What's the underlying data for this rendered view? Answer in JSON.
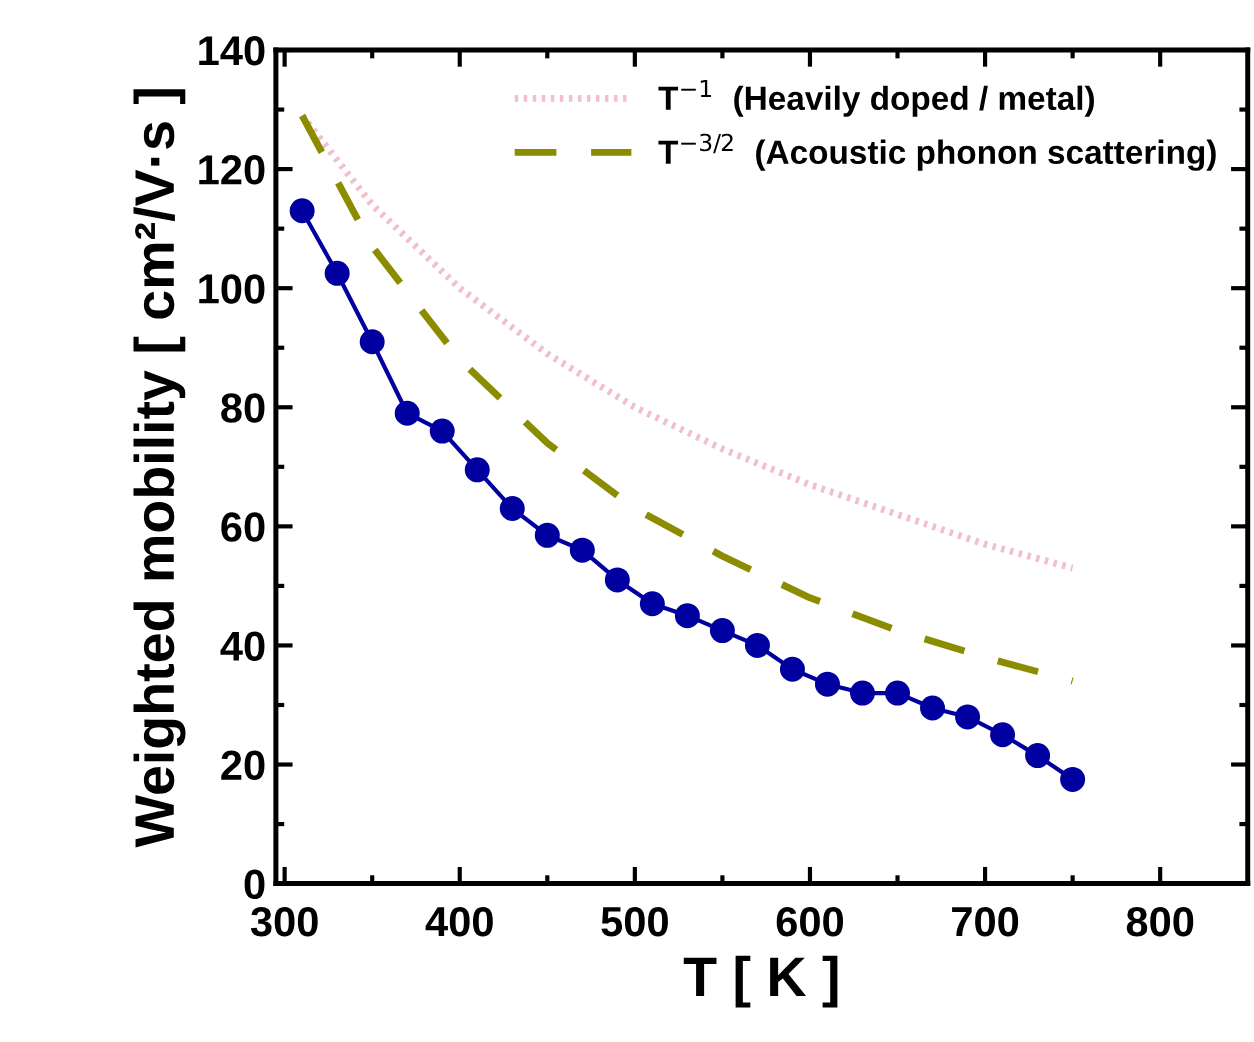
{
  "chart_data": {
    "type": "line",
    "xlabel": "T [ K ]",
    "ylabel": "Weighted mobility [ cm²/V·s ]",
    "xlim": [
      295,
      850
    ],
    "xticks": [
      300,
      400,
      500,
      600,
      700,
      800
    ],
    "ylim": [
      0,
      140
    ],
    "yticks": [
      0,
      20,
      40,
      60,
      80,
      100,
      120,
      140
    ],
    "grid": false,
    "legend": "top right",
    "series": [
      {
        "name": "T$^{−1}$  (Heavily doped / metal)",
        "color": "#f0c0cc",
        "line_style": "dotted",
        "marker": "none",
        "x": [
          310,
          350,
          400,
          450,
          500,
          550,
          600,
          650,
          700,
          750
        ],
        "values": [
          129,
          114,
          100,
          89,
          80,
          73,
          67,
          62,
          57,
          53
        ]
      },
      {
        "name": "T$^{−3/2}$  (Acoustic phonon scattering)",
        "color": "#8c8c00",
        "line_style": "dashed",
        "marker": "none",
        "x": [
          310,
          350,
          400,
          450,
          500,
          550,
          600,
          650,
          700,
          750
        ],
        "values": [
          129,
          107,
          88,
          74,
          63,
          55,
          48,
          42.5,
          38,
          34
        ]
      },
      {
        "color": "#0000a0",
        "line_style": "solid",
        "marker": "circle",
        "x": [
          310,
          330,
          350,
          370,
          390,
          410,
          430,
          450,
          470,
          490,
          510,
          530,
          550,
          570,
          590,
          610,
          630,
          650,
          670,
          690,
          710,
          730,
          750
        ],
        "values": [
          113,
          102.5,
          91,
          79,
          76,
          69.5,
          63,
          58.5,
          56,
          51,
          47,
          45,
          42.5,
          40,
          36,
          33.5,
          32,
          32,
          29.5,
          28,
          25,
          21.5,
          17.5
        ]
      }
    ]
  }
}
